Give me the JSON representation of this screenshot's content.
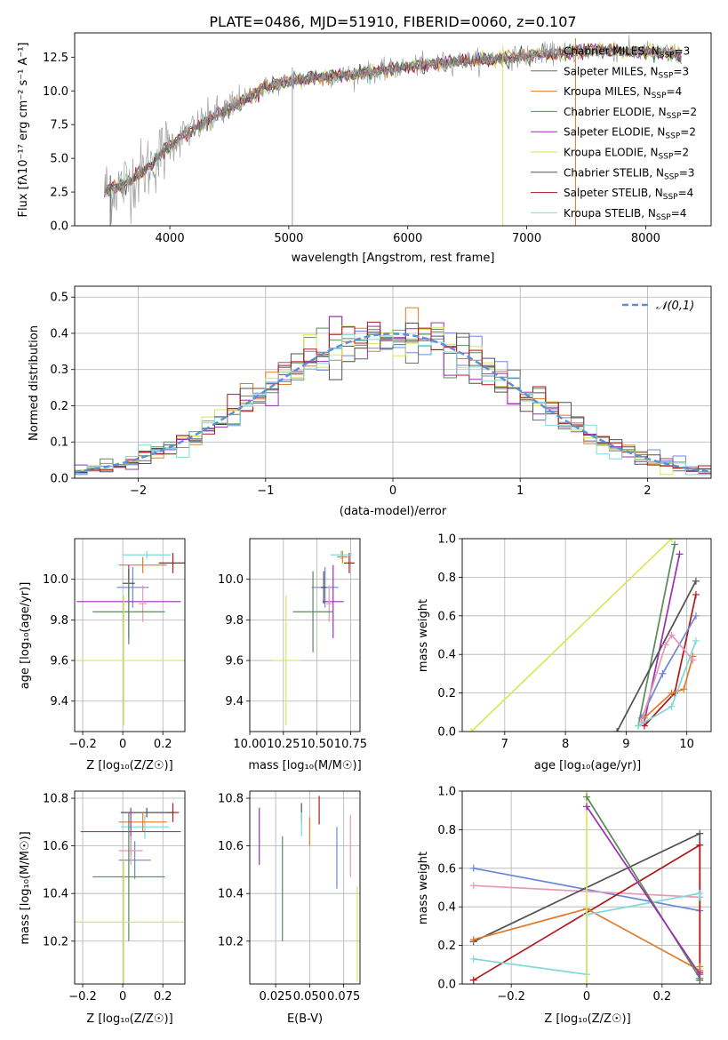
{
  "figure_title": "PLATE=0486, MJD=51910, FIBERID=0060, z=0.107",
  "colors": {
    "series": [
      "#9e9e9e",
      "#6f6f6f",
      "#e07b2a",
      "#5a8a5a",
      "#9b30b0",
      "#d8e858",
      "#505050",
      "#b01818",
      "#7fd8d8"
    ],
    "extra": [
      "#6a88d8",
      "#e898b8"
    ],
    "normal_fit": "#5b8fd6"
  },
  "chart_data": [
    {
      "name": "spectrum",
      "type": "line",
      "xlabel": "wavelength [Angstrom, rest frame]",
      "ylabel": "Flux [fλ10⁻¹⁷ erg cm⁻² s⁻¹ A⁻¹]",
      "xlim": [
        3200,
        8550
      ],
      "ylim": [
        0,
        14.3
      ],
      "xticks": [
        4000,
        5000,
        6000,
        7000,
        8000
      ],
      "yticks": [
        0.0,
        2.5,
        5.0,
        7.5,
        10.0,
        12.5
      ],
      "legend_position": "right",
      "series": [
        {
          "name": "Chabrier MILES, N_SSP=3"
        },
        {
          "name": "Salpeter MILES, N_SSP=3"
        },
        {
          "name": "Kroupa MILES, N_SSP=4"
        },
        {
          "name": "Chabrier ELODIE, N_SSP=2"
        },
        {
          "name": "Salpeter ELODIE, N_SSP=2"
        },
        {
          "name": "Kroupa ELODIE, N_SSP=2"
        },
        {
          "name": "Chabrier STELIB, N_SSP=3"
        },
        {
          "name": "Salpeter STELIB, N_SSP=4"
        },
        {
          "name": "Kroupa STELIB, N_SSP=4"
        }
      ],
      "continuum": {
        "x": [
          3450,
          3600,
          3800,
          4000,
          4200,
          4400,
          4600,
          4800,
          5000,
          5200,
          5400,
          5600,
          5800,
          6000,
          6200,
          6400,
          6600,
          6800,
          7000,
          7200,
          7400,
          7600,
          7800,
          8000,
          8200,
          8300
        ],
        "y": [
          2.6,
          3.0,
          4.2,
          6.0,
          7.2,
          8.2,
          9.2,
          10.3,
          10.7,
          11.0,
          11.1,
          11.3,
          11.5,
          11.8,
          12.0,
          12.2,
          12.3,
          12.4,
          12.6,
          12.8,
          12.9,
          13.0,
          12.9,
          12.9,
          12.8,
          12.7
        ]
      },
      "data_range": [
        3450,
        8300
      ]
    },
    {
      "name": "residual-histogram",
      "type": "step",
      "xlabel": "(data-model)/error",
      "ylabel": "Normed distribution",
      "xlim": [
        -2.5,
        2.5
      ],
      "ylim": [
        0,
        0.53
      ],
      "xticks": [
        -2,
        -1,
        0,
        1,
        2
      ],
      "yticks": [
        0.0,
        0.1,
        0.2,
        0.3,
        0.4,
        0.5
      ],
      "legend_label": "𝒩(0,1)",
      "bin_width": 0.1
    },
    {
      "name": "age-vs-metallicity",
      "type": "errorbar",
      "xlabel": "Z [log₁₀(Z/Z☉)]",
      "ylabel": "age  [log₁₀(age/yr)]",
      "xlim": [
        -0.24,
        0.31
      ],
      "ylim": [
        9.25,
        10.2
      ],
      "xticks": [
        -0.2,
        0.0,
        0.2
      ],
      "yticks": [
        9.4,
        9.6,
        9.8,
        10.0
      ],
      "points": [
        {
          "x": 0.25,
          "xerr": 0.07,
          "y": 10.08,
          "yerr": 0.05,
          "c": 7
        },
        {
          "x": 0.12,
          "xerr": 0.12,
          "y": 10.12,
          "yerr": 0.02,
          "c": 8
        },
        {
          "x": 0.1,
          "xerr": 0.12,
          "y": 10.07,
          "yerr": 0.04,
          "c": 2
        },
        {
          "x": 0.05,
          "xerr": 0.08,
          "y": 9.96,
          "yerr": 0.1,
          "c": 9
        },
        {
          "x": 0.03,
          "xerr": 0.26,
          "y": 9.89,
          "yerr": 0.18,
          "c": 4
        },
        {
          "x": 0.03,
          "xerr": 0.03,
          "y": 9.98,
          "yerr": 0.07,
          "c": 6
        },
        {
          "x": 0.1,
          "xerr": 0.02,
          "y": 9.88,
          "yerr": 0.09,
          "c": 10
        },
        {
          "x": 0.03,
          "xerr": 0.18,
          "y": 9.84,
          "yerr": 0.16,
          "c": 3
        },
        {
          "x": 0.005,
          "xerr": 0.3,
          "y": 9.6,
          "yerr": 0.32,
          "c": 5
        }
      ]
    },
    {
      "name": "age-vs-mass",
      "type": "errorbar",
      "xlabel": "mass [log₁₀(M/M☉)]",
      "ylabel": "",
      "xlim": [
        10.0,
        10.82
      ],
      "ylim": [
        9.25,
        10.2
      ],
      "xticks": [
        10.0,
        10.25,
        10.5,
        10.75
      ],
      "xticklabels": [
        "10.00",
        "10.25",
        "10.50",
        "10.75"
      ],
      "yticks": [
        9.4,
        9.6,
        9.8,
        10.0
      ],
      "points": [
        {
          "x": 10.74,
          "xerr": 0.04,
          "y": 10.08,
          "yerr": 0.05,
          "c": 7
        },
        {
          "x": 10.69,
          "xerr": 0.04,
          "y": 10.11,
          "yerr": 0.03,
          "c": 2
        },
        {
          "x": 10.68,
          "xerr": 0.08,
          "y": 10.12,
          "yerr": 0.02,
          "c": 8
        },
        {
          "x": 10.56,
          "xerr": 0.1,
          "y": 9.96,
          "yerr": 0.1,
          "c": 9
        },
        {
          "x": 10.62,
          "xerr": 0.08,
          "y": 9.89,
          "yerr": 0.18,
          "c": 4
        },
        {
          "x": 10.55,
          "xerr": 0.02,
          "y": 9.96,
          "yerr": 0.08,
          "c": 6
        },
        {
          "x": 10.59,
          "xerr": 0.02,
          "y": 9.88,
          "yerr": 0.09,
          "c": 10
        },
        {
          "x": 10.47,
          "xerr": 0.15,
          "y": 9.84,
          "yerr": 0.2,
          "c": 3
        },
        {
          "x": 10.27,
          "xerr": 0.1,
          "y": 9.6,
          "yerr": 0.32,
          "c": 5
        }
      ]
    },
    {
      "name": "mass-weight-vs-age",
      "type": "line",
      "xlabel": "age  [log₁₀(age/yr)]",
      "ylabel": "mass weight",
      "xlim": [
        6.3,
        10.4
      ],
      "ylim": [
        0,
        1.0
      ],
      "xticks": [
        7,
        8,
        9,
        10
      ],
      "yticks": [
        0.0,
        0.2,
        0.4,
        0.6,
        0.8,
        1.0
      ],
      "series": [
        {
          "c": 5,
          "x": [
            6.45,
            9.75
          ],
          "y": [
            0.0,
            1.0
          ]
        },
        {
          "c": 3,
          "x": [
            9.2,
            9.8
          ],
          "y": [
            0.03,
            0.97
          ]
        },
        {
          "c": 4,
          "x": [
            9.3,
            9.88
          ],
          "y": [
            0.05,
            0.92
          ]
        },
        {
          "c": 6,
          "x": [
            8.85,
            10.15
          ],
          "y": [
            0.0,
            0.78
          ]
        },
        {
          "c": 7,
          "x": [
            9.3,
            9.8,
            10.15
          ],
          "y": [
            0.03,
            0.2,
            0.71
          ]
        },
        {
          "c": 2,
          "x": [
            9.3,
            9.75,
            9.95,
            10.1
          ],
          "y": [
            0.07,
            0.2,
            0.22,
            0.39
          ]
        },
        {
          "c": 9,
          "x": [
            9.25,
            9.6,
            10.15
          ],
          "y": [
            0.07,
            0.3,
            0.6
          ]
        },
        {
          "c": 10,
          "x": [
            9.25,
            9.65,
            9.75,
            10.1
          ],
          "y": [
            0.05,
            0.45,
            0.5,
            0.37
          ]
        },
        {
          "c": 8,
          "x": [
            9.2,
            9.75,
            10.15
          ],
          "y": [
            0.03,
            0.13,
            0.47
          ]
        }
      ]
    },
    {
      "name": "mass-vs-metallicity",
      "type": "errorbar",
      "xlabel": "Z [log₁₀(Z/Z☉)]",
      "ylabel": "mass [log₁₀(M/M☉)]",
      "xlim": [
        -0.24,
        0.31
      ],
      "ylim": [
        10.02,
        10.83
      ],
      "xticks": [
        -0.2,
        0.0,
        0.2
      ],
      "yticks": [
        10.2,
        10.4,
        10.6,
        10.8
      ],
      "points": [
        {
          "x": 0.25,
          "xerr": 0.03,
          "y": 10.74,
          "yerr": 0.04,
          "c": 7
        },
        {
          "x": 0.12,
          "xerr": 0.13,
          "y": 10.74,
          "yerr": 0.02,
          "c": 6
        },
        {
          "x": 0.11,
          "xerr": 0.12,
          "y": 10.68,
          "yerr": 0.05,
          "c": 8
        },
        {
          "x": 0.1,
          "xerr": 0.12,
          "y": 10.7,
          "yerr": 0.04,
          "c": 2
        },
        {
          "x": 0.04,
          "xerr": 0.25,
          "y": 10.66,
          "yerr": 0.1,
          "c": 4
        },
        {
          "x": 0.06,
          "xerr": 0.08,
          "y": 10.54,
          "yerr": 0.08,
          "c": 9
        },
        {
          "x": 0.04,
          "xerr": 0.06,
          "y": 10.58,
          "yerr": 0.06,
          "c": 10
        },
        {
          "x": 0.03,
          "xerr": 0.18,
          "y": 10.47,
          "yerr": 0.27,
          "c": 3
        },
        {
          "x": 0.005,
          "xerr": 0.3,
          "y": 10.28,
          "yerr": 0.26,
          "c": 5
        }
      ]
    },
    {
      "name": "mass-vs-ebv",
      "type": "errorbar",
      "xlabel": "E(B-V)",
      "ylabel": "",
      "xlim": [
        0.006,
        0.087
      ],
      "ylim": [
        10.02,
        10.83
      ],
      "xticks": [
        0.025,
        0.05,
        0.075
      ],
      "xticklabels": [
        "0.025",
        "0.050",
        "0.075"
      ],
      "yticks": [
        10.2,
        10.4,
        10.6,
        10.8
      ],
      "points": [
        {
          "x": 0.013,
          "xerr": 0,
          "y": 10.64,
          "yerr": 0.12,
          "c": 4
        },
        {
          "x": 0.03,
          "xerr": 0,
          "y": 10.42,
          "yerr": 0.22,
          "c": 3
        },
        {
          "x": 0.044,
          "xerr": 0,
          "y": 10.74,
          "yerr": 0.04,
          "c": 6
        },
        {
          "x": 0.044,
          "xerr": 0,
          "y": 10.69,
          "yerr": 0.05,
          "c": 8
        },
        {
          "x": 0.05,
          "xerr": 0,
          "y": 10.66,
          "yerr": 0.06,
          "c": 2
        },
        {
          "x": 0.057,
          "xerr": 0,
          "y": 10.75,
          "yerr": 0.06,
          "c": 7
        },
        {
          "x": 0.07,
          "xerr": 0,
          "y": 10.55,
          "yerr": 0.13,
          "c": 9
        },
        {
          "x": 0.08,
          "xerr": 0,
          "y": 10.6,
          "yerr": 0.13,
          "c": 10
        },
        {
          "x": 0.085,
          "xerr": 0,
          "y": 10.23,
          "yerr": 0.2,
          "c": 5
        }
      ]
    },
    {
      "name": "mass-weight-vs-metallicity",
      "type": "line",
      "xlabel": "Z [log₁₀(Z/Z☉)]",
      "ylabel": "mass weight",
      "xlim": [
        -0.33,
        0.33
      ],
      "ylim": [
        0,
        1.0
      ],
      "xticks": [
        -0.2,
        0.0,
        0.2
      ],
      "yticks": [
        0.0,
        0.2,
        0.4,
        0.6,
        0.8,
        1.0
      ],
      "series": [
        {
          "c": 9,
          "x": [
            -0.3,
            0.3
          ],
          "y": [
            0.6,
            0.38
          ]
        },
        {
          "c": 10,
          "x": [
            -0.3,
            0.3
          ],
          "y": [
            0.51,
            0.45
          ]
        },
        {
          "c": 6,
          "x": [
            -0.3,
            0.3,
            0.3
          ],
          "y": [
            0.22,
            0.78,
            0.02
          ]
        },
        {
          "c": 7,
          "x": [
            -0.3,
            0.3,
            0.3
          ],
          "y": [
            0.02,
            0.72,
            0.06
          ]
        },
        {
          "c": 2,
          "x": [
            -0.3,
            0.0,
            0.3,
            0.3
          ],
          "y": [
            0.23,
            0.39,
            0.07,
            0.09
          ]
        },
        {
          "c": 8,
          "x": [
            -0.3,
            0.0,
            0.0,
            0.3,
            0.3
          ],
          "y": [
            0.13,
            0.05,
            0.36,
            0.47,
            0.45
          ]
        },
        {
          "c": 5,
          "x": [
            0.0,
            0.0
          ],
          "y": [
            0.0,
            1.0
          ]
        },
        {
          "c": 3,
          "x": [
            0.0,
            0.3
          ],
          "y": [
            0.97,
            0.03
          ]
        },
        {
          "c": 4,
          "x": [
            0.0,
            0.3
          ],
          "y": [
            0.92,
            0.05
          ]
        }
      ]
    }
  ]
}
